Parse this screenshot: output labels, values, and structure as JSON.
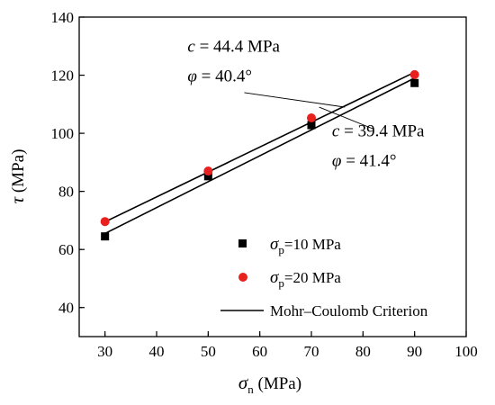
{
  "chart_data": {
    "type": "scatter",
    "x_axis": {
      "symbol": "σ",
      "subscript": "n",
      "unit": "(MPa)",
      "range": [
        25,
        100
      ],
      "ticks": [
        30,
        40,
        50,
        60,
        70,
        80,
        90,
        100
      ]
    },
    "y_axis": {
      "symbol": "τ",
      "unit": "(MPa)",
      "range": [
        30,
        140
      ],
      "ticks": [
        40,
        60,
        80,
        100,
        120,
        140
      ]
    },
    "series": [
      {
        "name": "σp =10 MPa",
        "legend": {
          "symbol": "σ",
          "subscript": "p",
          "text": "=10 MPa"
        },
        "marker": "square",
        "color": "#000000",
        "x": [
          30,
          50,
          70,
          90
        ],
        "y": [
          64.5,
          85.2,
          102.8,
          117.3
        ]
      },
      {
        "name": "σp =20 MPa",
        "legend": {
          "symbol": "σ",
          "subscript": "p",
          "text": "=20 MPa"
        },
        "marker": "circle",
        "color": "#e8201e",
        "x": [
          30,
          50,
          70,
          90
        ],
        "y": [
          69.6,
          87.0,
          105.3,
          120.2
        ]
      }
    ],
    "fit_lines": [
      {
        "x": [
          30,
          90
        ],
        "y": [
          69.5,
          121.0
        ]
      },
      {
        "x": [
          30,
          90
        ],
        "y": [
          65.5,
          119.0
        ]
      }
    ],
    "fit_legend": "Mohr–Coulomb Criterion",
    "annotations": [
      {
        "c_label": "c",
        "c_value": " = 44.4 MPa",
        "phi_label": "φ",
        "phi_value": " = 40.4°",
        "x": 46,
        "y": 128,
        "pointer": {
          "from": [
            57,
            114
          ],
          "to": [
            76.5,
            109
          ]
        }
      },
      {
        "c_label": "c",
        "c_value": " = 39.4 MPa",
        "phi_label": "φ",
        "phi_value": " = 41.4°",
        "x": 74,
        "y": 99,
        "pointer": {
          "from": [
            82,
            101.5
          ],
          "to": [
            71.5,
            109
          ]
        }
      }
    ],
    "legend_position": "bottom-right",
    "grid": false
  }
}
